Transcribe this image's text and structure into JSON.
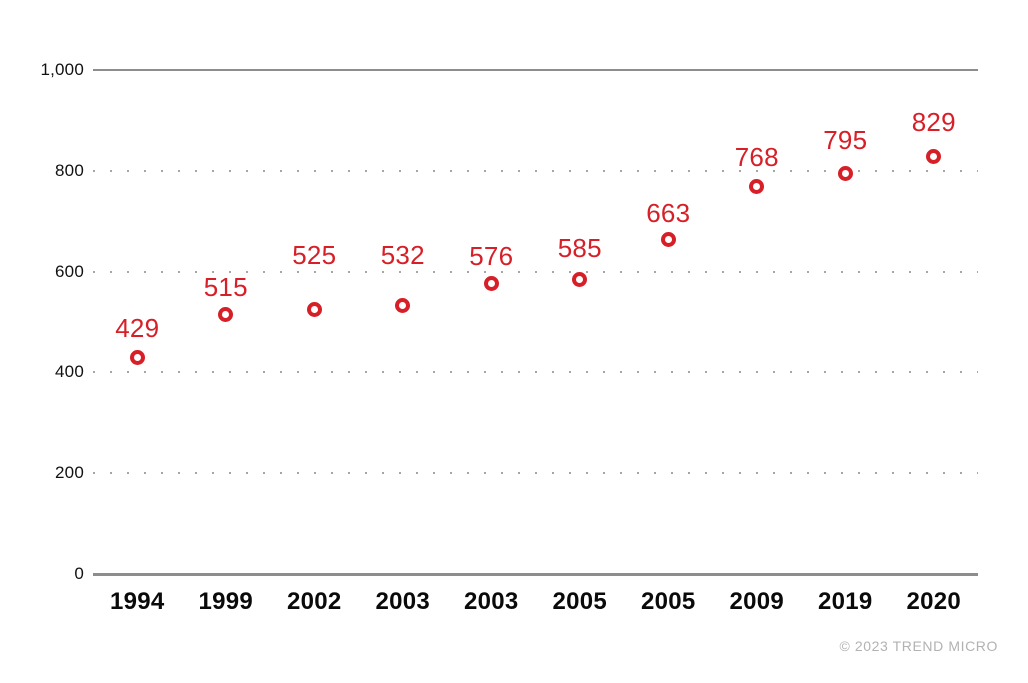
{
  "chart_data": {
    "type": "scatter",
    "title": "",
    "xlabel": "",
    "ylabel": "",
    "categories": [
      "1994",
      "1999",
      "2002",
      "2003",
      "2003",
      "2005",
      "2005",
      "2009",
      "2019",
      "2020"
    ],
    "values": [
      429,
      515,
      525,
      532,
      576,
      585,
      663,
      768,
      795,
      829
    ],
    "ylim": [
      0,
      1000
    ],
    "yticks": [
      {
        "value": 0,
        "label": "0",
        "line": "solid"
      },
      {
        "value": 200,
        "label": "200",
        "line": "dotted"
      },
      {
        "value": 400,
        "label": "400",
        "line": "dotted"
      },
      {
        "value": 600,
        "label": "600",
        "line": "dotted"
      },
      {
        "value": 800,
        "label": "800",
        "line": "dotted"
      },
      {
        "value": 1000,
        "label": "1,000",
        "line": "solid"
      }
    ],
    "grid": "horizontal",
    "legend": "none",
    "marker": "open-circle",
    "data_labels": "above-points"
  },
  "colors": {
    "accent": "#d71f27",
    "axis_line": "#8d8d8d",
    "grid_dot": "#a6a6a6",
    "tick_text": "#111111",
    "copyright_text": "#b2b2b2",
    "background": "#ffffff"
  },
  "footer": {
    "copyright": "© 2023 TREND MICRO"
  }
}
